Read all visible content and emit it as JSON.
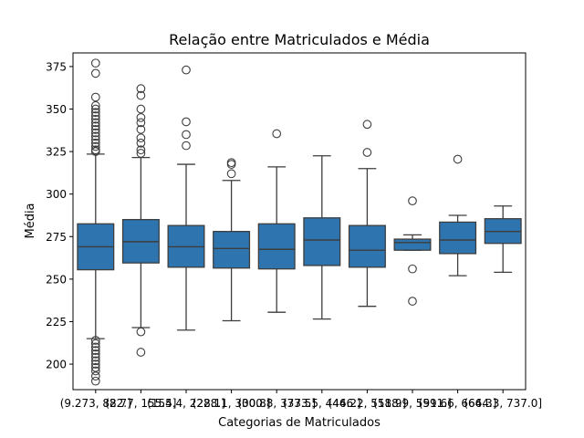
{
  "chart_data": {
    "type": "box",
    "title": "Relação entre Matriculados e Média",
    "xlabel": "Categorias de Matriculados",
    "ylabel": "Média",
    "ylim": [
      185,
      383
    ],
    "yticks": [
      200,
      225,
      250,
      275,
      300,
      325,
      350,
      375
    ],
    "grid": false,
    "box_color": "#2e75b0",
    "line_color": "#3d3d3d",
    "categories": [
      "(9.273, 82.7]",
      "(82.7, 155.4]",
      "(155.4, 228.1]",
      "(228.1, 300.8]",
      "(300.8, 373.5]",
      "(373.5, 446.2]",
      "(446.2, 518.9]",
      "(518.9, 591.6]",
      "(591.6, 664.3]",
      "(664.3, 737.0]"
    ],
    "boxes": [
      {
        "whislo": 215,
        "q1": 255.5,
        "med": 269,
        "q3": 282.5,
        "whishi": 323.5,
        "fliers": [
          377,
          371,
          357,
          352,
          350,
          348,
          346,
          344,
          342,
          340,
          338,
          336,
          334,
          332,
          330,
          328,
          326,
          325,
          214,
          212,
          210,
          208,
          206,
          204,
          202,
          200,
          198,
          196,
          193,
          190
        ]
      },
      {
        "whislo": 221.5,
        "q1": 259.5,
        "med": 272,
        "q3": 285,
        "whishi": 321.5,
        "fliers": [
          362,
          358,
          350,
          345,
          342,
          338,
          333,
          330,
          326,
          324,
          219,
          207
        ]
      },
      {
        "whislo": 220,
        "q1": 257,
        "med": 269,
        "q3": 281.5,
        "whishi": 317.5,
        "fliers": [
          373,
          342.5,
          335,
          328.5
        ]
      },
      {
        "whislo": 225.5,
        "q1": 256.5,
        "med": 268,
        "q3": 278,
        "whishi": 308,
        "fliers": [
          318.5,
          317.5,
          312
        ]
      },
      {
        "whislo": 230.5,
        "q1": 256,
        "med": 267.5,
        "q3": 282.5,
        "whishi": 316,
        "fliers": [
          335.5
        ]
      },
      {
        "whislo": 226.5,
        "q1": 258,
        "med": 273,
        "q3": 286,
        "whishi": 322.5,
        "fliers": []
      },
      {
        "whislo": 234,
        "q1": 257,
        "med": 267,
        "q3": 281.5,
        "whishi": 315,
        "fliers": [
          341,
          324.5
        ]
      },
      {
        "whislo": 267,
        "q1": 267,
        "med": 271.5,
        "q3": 273.5,
        "whishi": 276,
        "fliers": [
          296,
          256,
          237
        ]
      },
      {
        "whislo": 252,
        "q1": 265,
        "med": 273,
        "q3": 283.5,
        "whishi": 287.5,
        "fliers": [
          320.5
        ]
      },
      {
        "whislo": 254,
        "q1": 271,
        "med": 278,
        "q3": 285.5,
        "whishi": 293,
        "fliers": []
      }
    ]
  }
}
